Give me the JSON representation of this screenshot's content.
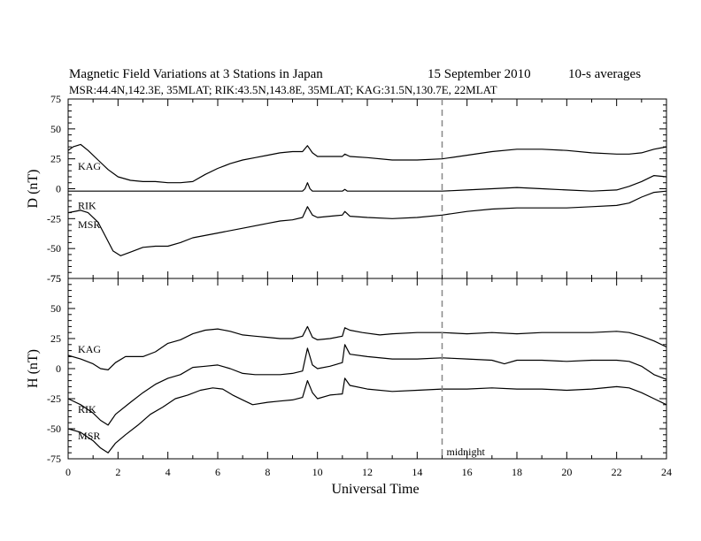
{
  "chart_data": {
    "type": "line",
    "title": "Magnetic Field Variations at 3 Stations in Japan",
    "date": "15 September 2010",
    "averaging": "10-s averages",
    "subtitle": "MSR:44.4N,142.3E, 35MLAT;  RIK:43.5N,143.8E, 35MLAT;  KAG:31.5N,130.7E, 22MLAT",
    "xlabel": "Universal Time",
    "x_ticks": [
      "0",
      "2",
      "4",
      "6",
      "8",
      "10",
      "12",
      "14",
      "16",
      "18",
      "20",
      "22",
      "24"
    ],
    "xlim": [
      0,
      24
    ],
    "midnight_label": "midnight",
    "midnight_ut": 15,
    "grid": false,
    "panels": [
      {
        "ylabel": "D (nT)",
        "ylim": [
          -75,
          75
        ],
        "y_ticks": [
          "75",
          "50",
          "25",
          "0",
          "-25",
          "-50",
          "-75"
        ],
        "series": [
          {
            "name": "KAG",
            "label_at": [
              0.25,
              19
            ],
            "points": [
              [
                0,
                32
              ],
              [
                0.2,
                35
              ],
              [
                0.5,
                37
              ],
              [
                0.8,
                32
              ],
              [
                1.2,
                24
              ],
              [
                1.6,
                16
              ],
              [
                2.0,
                10
              ],
              [
                2.5,
                7
              ],
              [
                3.0,
                6
              ],
              [
                3.5,
                6
              ],
              [
                4.0,
                5
              ],
              [
                4.5,
                5
              ],
              [
                5.0,
                6
              ],
              [
                5.5,
                12
              ],
              [
                6.0,
                17
              ],
              [
                6.5,
                21
              ],
              [
                7.0,
                24
              ],
              [
                7.5,
                26
              ],
              [
                8.0,
                28
              ],
              [
                8.5,
                30
              ],
              [
                9.0,
                31
              ],
              [
                9.4,
                31
              ],
              [
                9.6,
                36
              ],
              [
                9.8,
                30
              ],
              [
                10.0,
                27
              ],
              [
                10.5,
                27
              ],
              [
                11.0,
                27
              ],
              [
                11.1,
                29
              ],
              [
                11.3,
                27
              ],
              [
                12,
                26
              ],
              [
                13,
                24
              ],
              [
                14,
                24
              ],
              [
                15,
                25
              ],
              [
                16,
                28
              ],
              [
                17,
                31
              ],
              [
                18,
                33
              ],
              [
                19,
                33
              ],
              [
                20,
                32
              ],
              [
                21,
                30
              ],
              [
                22,
                29
              ],
              [
                22.5,
                29
              ],
              [
                23,
                30
              ],
              [
                23.5,
                33
              ],
              [
                24,
                35
              ]
            ]
          },
          {
            "name": "RIK",
            "label_at": [
              0.25,
              -14
            ],
            "points": [
              [
                0,
                -2
              ],
              [
                9.4,
                -2
              ],
              [
                9.5,
                0
              ],
              [
                9.6,
                5
              ],
              [
                9.7,
                0
              ],
              [
                9.8,
                -2
              ],
              [
                11.0,
                -2
              ],
              [
                11.1,
                -0.5
              ],
              [
                11.2,
                -2
              ],
              [
                15,
                -2
              ],
              [
                16,
                -1
              ],
              [
                17,
                0
              ],
              [
                18,
                1
              ],
              [
                19,
                0
              ],
              [
                20,
                -1
              ],
              [
                21,
                -2
              ],
              [
                22,
                -1
              ],
              [
                22.5,
                2
              ],
              [
                23,
                6
              ],
              [
                23.5,
                11
              ],
              [
                24,
                10
              ]
            ]
          },
          {
            "name": "MSR",
            "label_at": [
              0.25,
              -30
            ],
            "points": [
              [
                0,
                -20
              ],
              [
                0.5,
                -18
              ],
              [
                0.8,
                -20
              ],
              [
                1.2,
                -28
              ],
              [
                1.5,
                -40
              ],
              [
                1.8,
                -52
              ],
              [
                2.1,
                -56
              ],
              [
                2.5,
                -53
              ],
              [
                3.0,
                -49
              ],
              [
                3.5,
                -48
              ],
              [
                4.0,
                -48
              ],
              [
                4.5,
                -45
              ],
              [
                5.0,
                -41
              ],
              [
                6,
                -37
              ],
              [
                7,
                -33
              ],
              [
                8,
                -29
              ],
              [
                8.5,
                -27
              ],
              [
                9.0,
                -26
              ],
              [
                9.4,
                -24
              ],
              [
                9.6,
                -15
              ],
              [
                9.8,
                -22
              ],
              [
                10,
                -24
              ],
              [
                10.5,
                -23
              ],
              [
                11,
                -22
              ],
              [
                11.1,
                -19
              ],
              [
                11.3,
                -23
              ],
              [
                12,
                -24
              ],
              [
                13,
                -25
              ],
              [
                14,
                -24
              ],
              [
                15,
                -22
              ],
              [
                16,
                -19
              ],
              [
                17,
                -17
              ],
              [
                18,
                -16
              ],
              [
                19,
                -16
              ],
              [
                20,
                -16
              ],
              [
                21,
                -15
              ],
              [
                22,
                -14
              ],
              [
                22.5,
                -12
              ],
              [
                23,
                -7
              ],
              [
                23.5,
                -3
              ],
              [
                24,
                -2
              ]
            ]
          }
        ]
      },
      {
        "ylabel": "H (nT)",
        "ylim": [
          -75,
          75
        ],
        "y_ticks": [
          "75",
          "50",
          "25",
          "0",
          "-25",
          "-50",
          "-75"
        ],
        "series": [
          {
            "name": "KAG",
            "label_at": [
              0.25,
              16
            ],
            "points": [
              [
                0,
                11
              ],
              [
                0.5,
                8
              ],
              [
                1.0,
                4
              ],
              [
                1.3,
                0
              ],
              [
                1.6,
                -1
              ],
              [
                1.9,
                5
              ],
              [
                2.3,
                10
              ],
              [
                3.0,
                10
              ],
              [
                3.5,
                14
              ],
              [
                4.0,
                21
              ],
              [
                4.5,
                24
              ],
              [
                5.0,
                29
              ],
              [
                5.5,
                32
              ],
              [
                6.0,
                33
              ],
              [
                6.5,
                31
              ],
              [
                7.0,
                28
              ],
              [
                7.5,
                27
              ],
              [
                8.0,
                26
              ],
              [
                8.5,
                25
              ],
              [
                9.0,
                25
              ],
              [
                9.4,
                27
              ],
              [
                9.6,
                35
              ],
              [
                9.8,
                26
              ],
              [
                10.0,
                24
              ],
              [
                10.5,
                25
              ],
              [
                11.0,
                27
              ],
              [
                11.1,
                34
              ],
              [
                11.3,
                32
              ],
              [
                11.8,
                30
              ],
              [
                12.5,
                28
              ],
              [
                13,
                29
              ],
              [
                14,
                30
              ],
              [
                15,
                30
              ],
              [
                16,
                29
              ],
              [
                17,
                30
              ],
              [
                18,
                29
              ],
              [
                19,
                30
              ],
              [
                20,
                30
              ],
              [
                21,
                30
              ],
              [
                22,
                31
              ],
              [
                22.5,
                30
              ],
              [
                23,
                27
              ],
              [
                23.5,
                23
              ],
              [
                24,
                18
              ]
            ]
          },
          {
            "name": "RIK",
            "label_at": [
              0.25,
              -34
            ],
            "points": [
              [
                0,
                -25
              ],
              [
                0.5,
                -30
              ],
              [
                1.0,
                -37
              ],
              [
                1.3,
                -43
              ],
              [
                1.6,
                -47
              ],
              [
                1.9,
                -38
              ],
              [
                2.5,
                -28
              ],
              [
                3.0,
                -20
              ],
              [
                3.5,
                -13
              ],
              [
                4.0,
                -8
              ],
              [
                4.5,
                -5
              ],
              [
                5.0,
                1
              ],
              [
                5.5,
                2
              ],
              [
                6.0,
                3
              ],
              [
                6.5,
                0
              ],
              [
                7.0,
                -4
              ],
              [
                7.5,
                -5
              ],
              [
                8.0,
                -5
              ],
              [
                8.5,
                -5
              ],
              [
                9.0,
                -4
              ],
              [
                9.4,
                -2
              ],
              [
                9.6,
                17
              ],
              [
                9.8,
                3
              ],
              [
                10.0,
                0
              ],
              [
                10.5,
                2
              ],
              [
                11.0,
                5
              ],
              [
                11.1,
                20
              ],
              [
                11.3,
                12
              ],
              [
                12,
                10
              ],
              [
                13,
                8
              ],
              [
                14,
                8
              ],
              [
                15,
                9
              ],
              [
                16,
                8
              ],
              [
                17,
                7
              ],
              [
                17.5,
                4
              ],
              [
                18,
                7
              ],
              [
                19,
                7
              ],
              [
                20,
                6
              ],
              [
                21,
                7
              ],
              [
                22,
                7
              ],
              [
                22.5,
                6
              ],
              [
                23,
                2
              ],
              [
                23.5,
                -5
              ],
              [
                24,
                -9
              ]
            ]
          },
          {
            "name": "MSR",
            "label_at": [
              0.25,
              -56
            ],
            "points": [
              [
                0,
                -50
              ],
              [
                0.5,
                -53
              ],
              [
                1.0,
                -60
              ],
              [
                1.3,
                -66
              ],
              [
                1.6,
                -70
              ],
              [
                1.9,
                -62
              ],
              [
                2.3,
                -55
              ],
              [
                2.8,
                -47
              ],
              [
                3.3,
                -38
              ],
              [
                3.8,
                -32
              ],
              [
                4.3,
                -25
              ],
              [
                4.8,
                -22
              ],
              [
                5.3,
                -18
              ],
              [
                5.8,
                -16
              ],
              [
                6.2,
                -17
              ],
              [
                6.6,
                -22
              ],
              [
                7.0,
                -26
              ],
              [
                7.4,
                -30
              ],
              [
                8.0,
                -28
              ],
              [
                8.5,
                -27
              ],
              [
                9.0,
                -26
              ],
              [
                9.4,
                -24
              ],
              [
                9.6,
                -10
              ],
              [
                9.8,
                -20
              ],
              [
                10,
                -25
              ],
              [
                10.5,
                -22
              ],
              [
                11,
                -21
              ],
              [
                11.1,
                -8
              ],
              [
                11.3,
                -14
              ],
              [
                12,
                -17
              ],
              [
                13,
                -19
              ],
              [
                14,
                -18
              ],
              [
                15,
                -17
              ],
              [
                16,
                -17
              ],
              [
                17,
                -16
              ],
              [
                18,
                -17
              ],
              [
                19,
                -17
              ],
              [
                20,
                -18
              ],
              [
                21,
                -17
              ],
              [
                22,
                -15
              ],
              [
                22.5,
                -16
              ],
              [
                23,
                -20
              ],
              [
                23.5,
                -25
              ],
              [
                24,
                -30
              ]
            ]
          }
        ]
      }
    ]
  }
}
